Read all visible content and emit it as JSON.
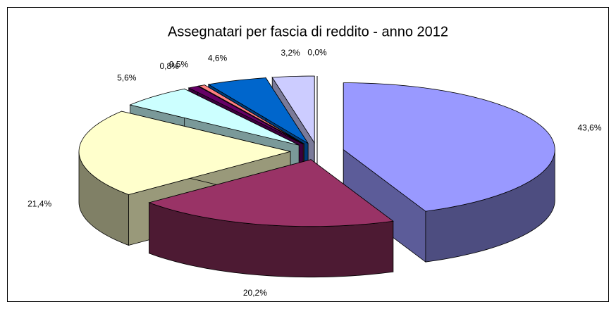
{
  "chart_data": {
    "type": "pie",
    "title": "Assegnatari per fascia di reddito - anno 2012",
    "values": [
      43.6,
      20.2,
      21.4,
      5.6,
      0.8,
      0.5,
      4.6,
      3.2,
      0.0
    ],
    "value_labels": [
      "43,6%",
      "20,2%",
      "21,4%",
      "5,6%",
      "0,8%",
      "0,5%",
      "4,6%",
      "3,2%",
      "0,0%"
    ],
    "colors": [
      "#9999ff",
      "#993366",
      "#ffffcc",
      "#ccffff",
      "#660066",
      "#ff8080",
      "#0066cc",
      "#ccccff",
      "#ffffff"
    ]
  }
}
